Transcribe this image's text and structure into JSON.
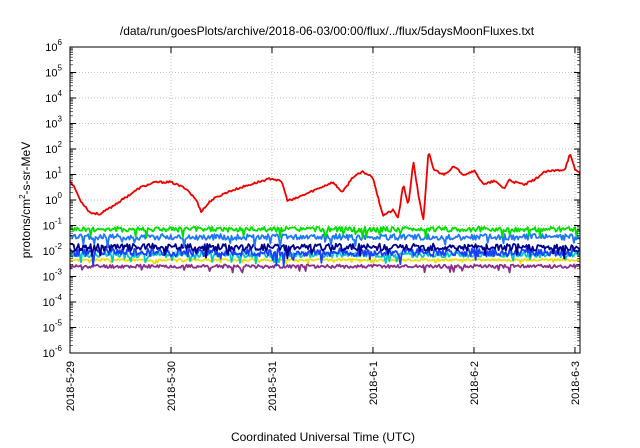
{
  "chart_data": {
    "type": "line",
    "title": "/data/run/goesPlots/archive/2018-06-03/00:00/flux/../flux/5daysMoonFluxes.txt",
    "xlabel": "Coordinated Universal Time (UTC)",
    "ylabel": "protons/cm2-s-sr-MeV",
    "ylabel_parts": {
      "base": "protons/cm",
      "sup": "2",
      "rest": "-s-sr-MeV"
    },
    "yscale": "log",
    "ylim": [
      1e-06,
      1000000.0
    ],
    "y_ticks": [
      {
        "v": -6,
        "base": "10",
        "exp": "-6"
      },
      {
        "v": -5,
        "base": "10",
        "exp": "-5"
      },
      {
        "v": -4,
        "base": "10",
        "exp": "-4"
      },
      {
        "v": -3,
        "base": "10",
        "exp": "-3"
      },
      {
        "v": -2,
        "base": "10",
        "exp": "-2"
      },
      {
        "v": -1,
        "base": "10",
        "exp": "-1"
      },
      {
        "v": 0,
        "base": "10",
        "exp": "0"
      },
      {
        "v": 1,
        "base": "10",
        "exp": "1"
      },
      {
        "v": 2,
        "base": "10",
        "exp": "2"
      },
      {
        "v": 3,
        "base": "10",
        "exp": "3"
      },
      {
        "v": 4,
        "base": "10",
        "exp": "4"
      },
      {
        "v": 5,
        "base": "10",
        "exp": "5"
      },
      {
        "v": 6,
        "base": "10",
        "exp": "6"
      }
    ],
    "xlim": [
      0,
      5.05
    ],
    "x_ticks": [
      {
        "v": 0,
        "label": "2018-5-29"
      },
      {
        "v": 1,
        "label": "2018-5-30"
      },
      {
        "v": 2,
        "label": "2018-5-31"
      },
      {
        "v": 3,
        "label": "2018-6-1"
      },
      {
        "v": 4,
        "label": "2018-6-2"
      },
      {
        "v": 5,
        "label": "2018-6-3"
      }
    ],
    "grid": true,
    "series": [
      {
        "color": "#e8e000",
        "base": -2.35,
        "noise": 0.04,
        "seed": 3,
        "x": [
          0,
          5.05
        ],
        "y": [
          -2.35,
          -2.35
        ]
      },
      {
        "color": "#8a2f8a",
        "base": -2.6,
        "noise": 0.07,
        "seed": 11,
        "x": [
          0,
          5.05
        ],
        "y": [
          -2.6,
          -2.6
        ]
      },
      {
        "color": "#00c8c8",
        "base": -2.15,
        "noise": 0.1,
        "seed": 17,
        "x": [
          0,
          5.05
        ],
        "y": [
          -2.15,
          -2.15
        ]
      },
      {
        "color": "#1a40ff",
        "base": -2.05,
        "noise": 0.16,
        "seed": 23,
        "x": [
          0,
          5.05
        ],
        "y": [
          -2.05,
          -2.05
        ]
      },
      {
        "color": "#00008b",
        "base": -1.85,
        "noise": 0.14,
        "seed": 29,
        "x": [
          0,
          5.05
        ],
        "y": [
          -1.85,
          -1.85
        ]
      },
      {
        "color": "#1e78ff",
        "base": -1.45,
        "noise": 0.12,
        "seed": 37,
        "x": [
          0,
          5.05
        ],
        "y": [
          -1.45,
          -1.45
        ]
      },
      {
        "color": "#00e000",
        "base": -1.15,
        "noise": 0.1,
        "seed": 41,
        "x": [
          0,
          5.05
        ],
        "y": [
          -1.15,
          -1.15
        ]
      },
      {
        "color": "#ee0000",
        "base": null,
        "noise": 0.04,
        "seed": 53,
        "x": [
          0,
          0.05,
          0.1,
          0.2,
          0.3,
          0.4,
          0.55,
          0.7,
          0.85,
          1.0,
          1.15,
          1.25,
          1.3,
          1.4,
          1.55,
          1.7,
          1.9,
          2.0,
          2.1,
          2.15,
          2.2,
          2.4,
          2.6,
          2.7,
          2.8,
          2.9,
          3.0,
          3.05,
          3.1,
          3.2,
          3.25,
          3.3,
          3.35,
          3.4,
          3.45,
          3.5,
          3.55,
          3.6,
          3.7,
          3.8,
          3.9,
          4.0,
          4.1,
          4.2,
          4.3,
          4.35,
          4.4,
          4.5,
          4.6,
          4.7,
          4.8,
          4.9,
          4.95,
          5.0,
          5.05
        ],
        "y": [
          0.75,
          0.45,
          0.0,
          -0.5,
          -0.55,
          -0.3,
          0.1,
          0.5,
          0.7,
          0.7,
          0.45,
          0.0,
          -0.45,
          0.0,
          0.3,
          0.5,
          0.75,
          0.85,
          0.7,
          0.0,
          0.0,
          0.35,
          0.7,
          0.3,
          0.9,
          1.1,
          0.9,
          0.1,
          -0.6,
          -0.4,
          -0.7,
          0.6,
          -0.2,
          1.5,
          0.2,
          -0.8,
          1.9,
          1.2,
          1.0,
          1.3,
          1.0,
          1.15,
          0.6,
          0.75,
          0.45,
          0.8,
          0.7,
          0.6,
          0.8,
          1.1,
          1.15,
          1.2,
          1.8,
          1.2,
          1.05
        ]
      }
    ]
  }
}
